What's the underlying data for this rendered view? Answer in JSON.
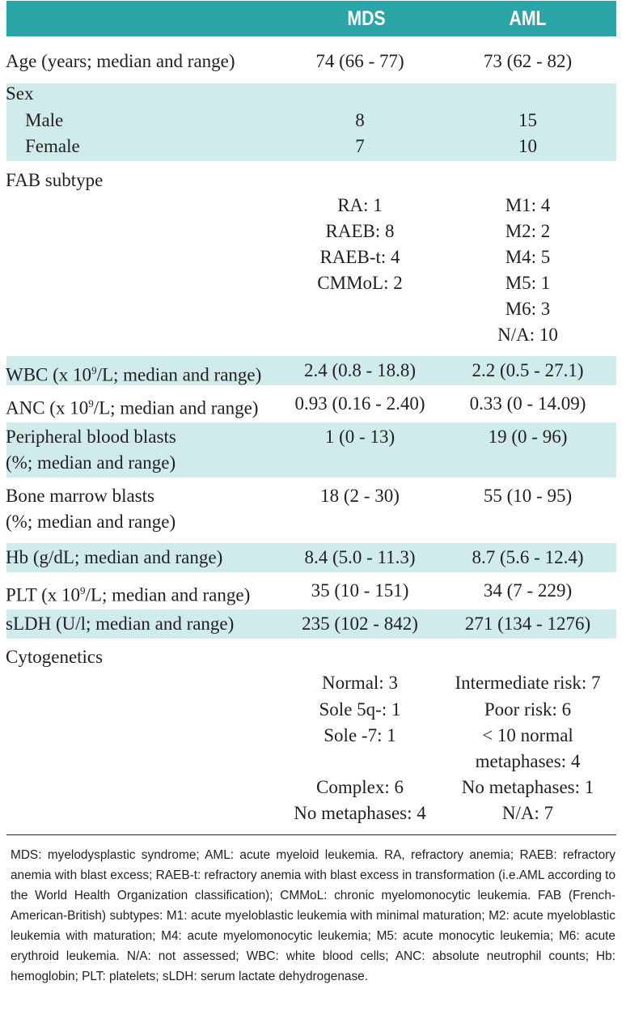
{
  "header": {
    "col_mds": "MDS",
    "col_aml": "AML"
  },
  "age": {
    "label": "Age (years; median and range)",
    "mds": "74 (66 - 77)",
    "aml": "73 (62 - 82)"
  },
  "sex": {
    "label": "Sex",
    "male": {
      "label": "Male",
      "mds": "8",
      "aml": "15"
    },
    "female": {
      "label": "Female",
      "mds": "7",
      "aml": "10"
    }
  },
  "fab": {
    "label": "FAB subtype",
    "mds": [
      "RA: 1",
      "RAEB: 8",
      "RAEB-t: 4",
      "CMMoL: 2"
    ],
    "aml": [
      "M1: 4",
      "M2: 2",
      "M4: 5",
      "M5: 1",
      "M6: 3",
      "N/A: 10"
    ]
  },
  "wbc": {
    "label_pre": "WBC (x 10",
    "sup": "9",
    "label_post": "/L; median and range)",
    "mds": "2.4 (0.8 - 18.8)",
    "aml": "2.2 (0.5 - 27.1)"
  },
  "anc": {
    "label_pre": "ANC (x 10",
    "sup": "9",
    "label_post": "/L; median and range)",
    "mds": "0.93 (0.16 - 2.40)",
    "aml": "0.33 (0 - 14.09)"
  },
  "pb_blasts": {
    "label_1": "Peripheral blood blasts",
    "label_2": "(%; median and range)",
    "mds": "1 (0 - 13)",
    "aml": "19 (0 - 96)"
  },
  "bm_blasts": {
    "label_1": "Bone marrow blasts",
    "label_2": "(%; median and range)",
    "mds": "18 (2 - 30)",
    "aml": "55 (10 - 95)"
  },
  "hb": {
    "label": "Hb (g/dL; median and range)",
    "mds": "8.4 (5.0 - 11.3)",
    "aml": "8.7 (5.6 - 12.4)"
  },
  "plt": {
    "label_pre": "PLT (x 10",
    "sup": "9",
    "label_post": "/L; median and range)",
    "mds": "35 (10 - 151)",
    "aml": "34 (7 - 229)"
  },
  "sldh": {
    "label": "sLDH (U/l; median and range)",
    "mds": "235 (102 - 842)",
    "aml": "271 (134 - 1276)"
  },
  "cyto": {
    "label": "Cytogenetics",
    "mds": [
      "Normal: 3",
      "Sole 5q-: 1",
      "Sole -7: 1",
      "Complex: 6",
      "No metaphases: 4"
    ],
    "aml": [
      "Intermediate risk: 7",
      "Poor risk: 6",
      "< 10 normal",
      "metaphases: 4",
      "No metaphases: 1",
      "N/A: 7"
    ]
  },
  "footnote": "MDS: myelodysplastic syndrome; AML: acute myeloid leukemia. RA, refractory anemia; RAEB: refractory anemia with blast excess; RAEB-t: refractory anemia with blast excess in transformation (i.e.AML according to the World Health Organization classification); CMMoL: chronic myelomonocytic leukemia. FAB (French-American-British) subtypes: M1: acute myeloblastic leukemia with minimal maturation; M2: acute myeloblastic leukemia with maturation; M4: acute myelomonocytic leukemia; M5: acute monocytic leukemia; M6: acute erythroid leukemia. N/A: not assessed; WBC: white blood cells; ANC: absolute neutrophil counts; Hb: hemoglobin; PLT: platelets; sLDH: serum lactate dehydrogenase.",
  "colors": {
    "header_bg": "#2ba5a8",
    "shade_bg": "#d0ebeb",
    "text": "#231f20"
  }
}
